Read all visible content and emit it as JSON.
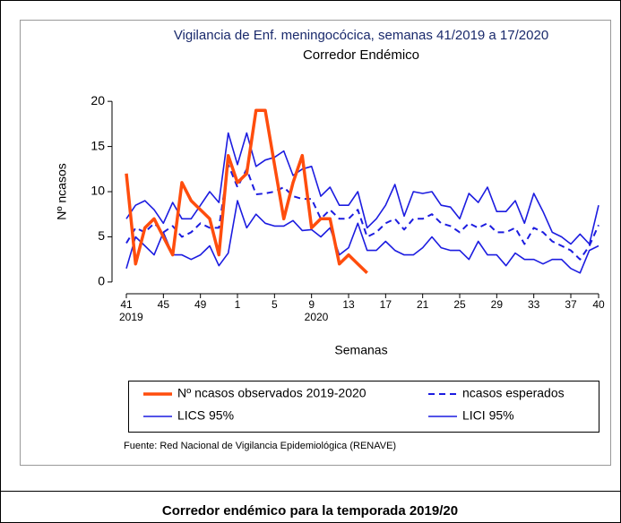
{
  "chart_data": {
    "type": "line",
    "title": "Vigilancia de Enf. meningocócica, semanas 41/2019 a 17/2020",
    "subtitle": "Corredor Endémico",
    "y_label": "Nº ncasos",
    "x_label": "Semanas",
    "source": "Fuente: Red Nacional de Vigilancia Epidemiológica (RENAVE)",
    "categories": [
      "41",
      null,
      null,
      null,
      "45",
      null,
      null,
      null,
      "49",
      null,
      null,
      null,
      "1",
      null,
      null,
      null,
      "5",
      null,
      null,
      null,
      "9",
      null,
      null,
      null,
      "13",
      null,
      null,
      null,
      "17",
      null,
      null,
      null,
      "21",
      null,
      null,
      null,
      "25",
      null,
      null,
      null,
      "29",
      null,
      null,
      null,
      "33",
      null,
      null,
      null,
      "37",
      null,
      null,
      "40"
    ],
    "category_years": [
      "2019",
      null,
      null,
      null,
      null,
      null,
      null,
      null,
      null,
      null,
      null,
      null,
      null,
      null,
      null,
      null,
      null,
      null,
      null,
      null,
      "2020",
      null,
      null,
      null,
      null,
      null,
      null,
      null,
      null,
      null,
      null,
      null,
      null,
      null,
      null,
      null,
      null,
      null,
      null,
      null,
      null,
      null,
      null,
      null,
      null,
      null,
      null,
      null,
      null,
      null,
      null,
      null
    ],
    "ylim": [
      -1.3,
      21.8
    ],
    "yticks": [
      0,
      5,
      10,
      15,
      20
    ],
    "series": [
      {
        "name": "Nº ncasos observados 2019-2020",
        "color": "#ff4d0d",
        "line_style": "solid",
        "width": 3.5,
        "values": [
          12,
          2,
          6,
          7,
          5,
          3,
          11,
          9,
          8,
          7,
          3,
          14,
          11,
          12,
          19,
          19,
          13,
          7,
          11,
          14,
          6,
          7,
          7,
          2,
          3,
          2,
          1,
          null,
          null,
          null,
          null,
          null,
          null,
          null,
          null,
          null,
          null,
          null,
          null,
          null,
          null,
          null,
          null,
          null,
          null,
          null,
          null,
          null,
          null,
          null,
          null,
          null
        ]
      },
      {
        "name": "ncasos esperados",
        "color": "#1c1ce0",
        "line_style": "dashed",
        "width": 2,
        "values": [
          4.3,
          6,
          5.5,
          6.5,
          5.5,
          6.2,
          5,
          5.5,
          6.5,
          6,
          6,
          13,
          10.5,
          12.5,
          9.7,
          9.8,
          10,
          10.5,
          9.5,
          9.2,
          9.2,
          7,
          8,
          7,
          7,
          8,
          5,
          5.5,
          6.5,
          7,
          5.8,
          7,
          7,
          7.5,
          6.5,
          6.2,
          5.5,
          6.5,
          6,
          6.5,
          5.5,
          5.5,
          6,
          4.2,
          6,
          5.5,
          4.5,
          4,
          3.5,
          2.5,
          4,
          6.3
        ]
      },
      {
        "name": "LICS 95%",
        "color": "#1c1ce0",
        "line_style": "solid",
        "width": 1.6,
        "values": [
          7,
          8.5,
          9,
          8,
          6.5,
          8.8,
          7,
          7,
          8.5,
          10,
          8.8,
          16.5,
          13,
          16.5,
          12.8,
          13.5,
          13.8,
          14.5,
          11.8,
          12.5,
          12.8,
          9.5,
          10.5,
          8.5,
          8.5,
          10,
          6,
          7,
          8.5,
          10.8,
          7.3,
          10,
          9.8,
          10,
          8.5,
          8.3,
          7,
          9.8,
          8.8,
          10.5,
          7.8,
          7.8,
          9,
          6.5,
          9.8,
          7.8,
          5.5,
          5,
          4.2,
          5.3,
          4.2,
          8.5
        ]
      },
      {
        "name": "LICI 95%",
        "color": "#1c1ce0",
        "line_style": "solid",
        "width": 1.6,
        "values": [
          1.5,
          5,
          4,
          3,
          5.5,
          3,
          3,
          2.5,
          3,
          4,
          1.8,
          3.2,
          9,
          6,
          7.5,
          6.5,
          6.2,
          6.2,
          6.8,
          5.7,
          5.8,
          5,
          6,
          3,
          3.8,
          6.5,
          3.5,
          3.5,
          4.5,
          3.5,
          3,
          3,
          3.8,
          5,
          3.8,
          3.5,
          3.5,
          2.5,
          4.5,
          3,
          3,
          1.8,
          3.2,
          2.5,
          2.5,
          2,
          2.5,
          2.5,
          1.5,
          1,
          3.5,
          4
        ]
      }
    ]
  },
  "caption": "Corredor endémico para la temporada 2019/20"
}
